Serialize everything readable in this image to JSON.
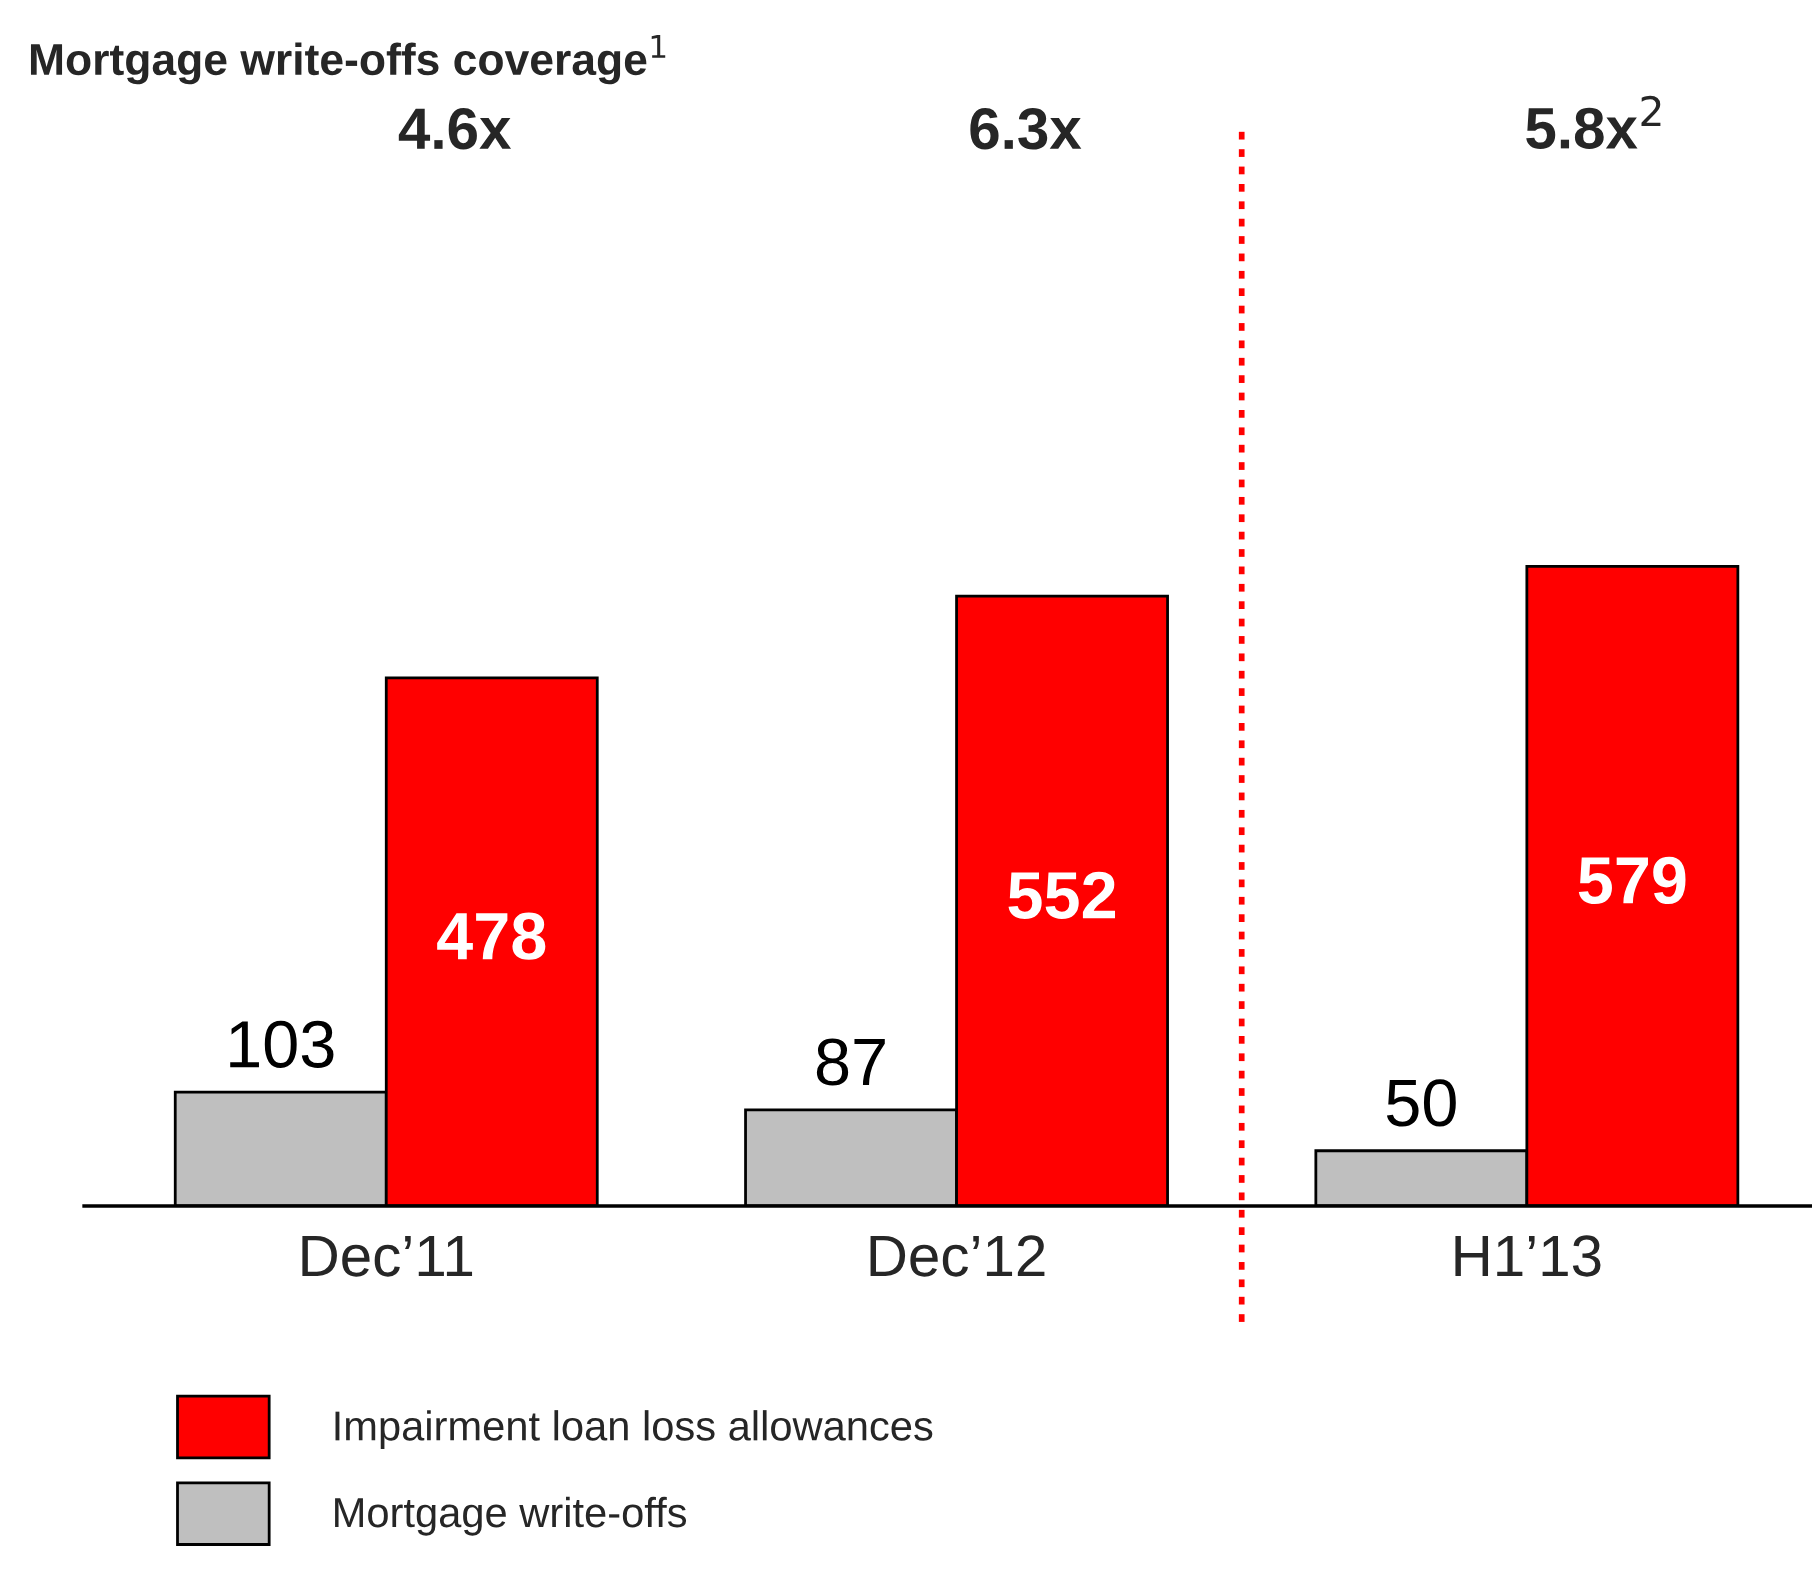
{
  "chart_data": {
    "type": "bar",
    "title": "Mortgage write-offs coverage$^{1}$",
    "categories": [
      "Dec’11",
      "Dec’12",
      "H1’13"
    ],
    "series": [
      {
        "name": "Mortgage write-offs",
        "color": "#bfbfbf",
        "values": [
          103,
          87,
          50
        ]
      },
      {
        "name": "Impairment loan loss allowances",
        "color": "#ff0000",
        "values": [
          478,
          552,
          579
        ]
      }
    ],
    "data_labels": true,
    "annotations": [
      "4.6x",
      "6.3x",
      "5.8x$^{2}$"
    ],
    "legend": "bottom left",
    "grid": false
  }
}
